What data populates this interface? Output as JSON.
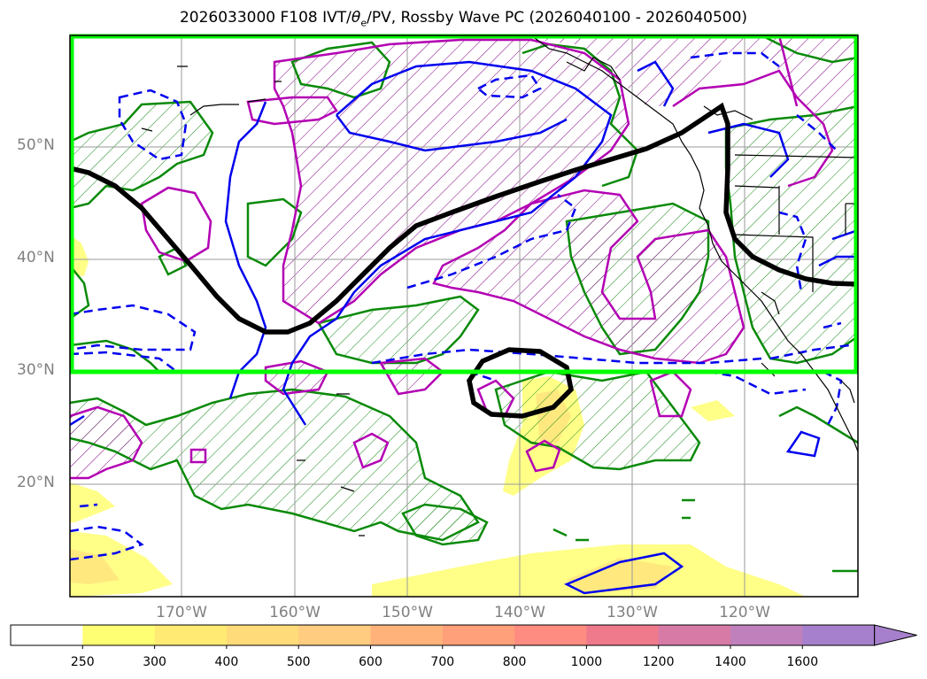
{
  "title_main": "2026033000 F108 IVT/",
  "title_theta": "θ",
  "title_sub": "e",
  "title_rest": "/PV, Rossby Wave PC (2026040100 - 2026040500)",
  "lat_labels": [
    "50°N",
    "40°N",
    "30°N",
    "20°N"
  ],
  "lon_labels": [
    "170°W",
    "160°W",
    "150°W",
    "140°W",
    "130°W",
    "120°W"
  ],
  "colorbar": {
    "levels": [
      "250",
      "300",
      "400",
      "500",
      "600",
      "700",
      "800",
      "1000",
      "1200",
      "1400",
      "1600"
    ],
    "colors": [
      "#ffffff",
      "#ffff73",
      "#ffeb73",
      "#ffdb7a",
      "#ffcc80",
      "#ffb37a",
      "#ffa07a",
      "#ff8c80",
      "#ee7a8c",
      "#d77aa6",
      "#c080bb",
      "#a680cc"
    ]
  },
  "region_box_color": "#00ff00",
  "contour_colors": {
    "pv": "#008000",
    "theta_e": "#b300b3",
    "rossby_solid": "#0000ee",
    "rossby_dashed": "#0000ee",
    "wave_guide": "#000000"
  }
}
